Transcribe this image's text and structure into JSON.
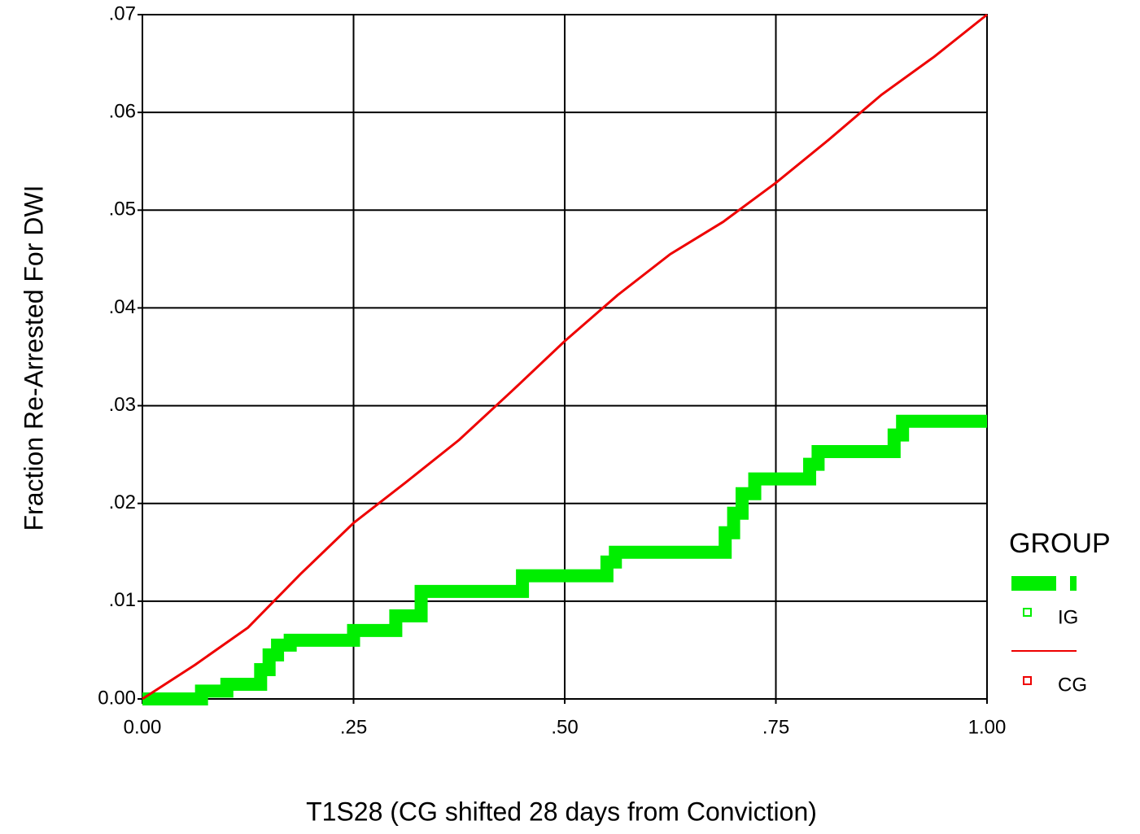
{
  "chart_data": {
    "type": "line",
    "xlabel": "T1S28 (CG shifted 28 days from Conviction)",
    "ylabel": "Fraction Re-Arrested For DWI",
    "legend_title": "GROUP",
    "xlim": [
      0,
      1
    ],
    "xticks": [
      {
        "value": 0,
        "label": "0.00"
      },
      {
        "value": 0.25,
        "label": ".25"
      },
      {
        "value": 0.5,
        "label": ".50"
      },
      {
        "value": 0.75,
        "label": ".75"
      },
      {
        "value": 1,
        "label": "1.00"
      }
    ],
    "ylim": [
      0,
      0.07
    ],
    "yticks": [
      {
        "value": 0,
        "label": "0.00"
      },
      {
        "value": 0.01,
        "label": ".01"
      },
      {
        "value": 0.02,
        "label": ".02"
      },
      {
        "value": 0.03,
        "label": ".03"
      },
      {
        "value": 0.04,
        "label": ".04"
      },
      {
        "value": 0.05,
        "label": ".05"
      },
      {
        "value": 0.06,
        "label": ".06"
      },
      {
        "value": 0.07,
        "label": ".07"
      }
    ],
    "grid": true,
    "series": [
      {
        "name": "IG",
        "color": "#00ee00",
        "x": [
          0,
          0.07,
          0.07,
          0.1,
          0.1,
          0.14,
          0.14,
          0.15,
          0.15,
          0.16,
          0.16,
          0.175,
          0.175,
          0.25,
          0.25,
          0.3,
          0.3,
          0.33,
          0.33,
          0.45,
          0.45,
          0.55,
          0.55,
          0.56,
          0.56,
          0.69,
          0.69,
          0.7,
          0.7,
          0.71,
          0.71,
          0.725,
          0.725,
          0.79,
          0.79,
          0.8,
          0.8,
          0.89,
          0.89,
          0.9,
          0.9,
          1.0
        ],
        "values": [
          0,
          0,
          0.0008,
          0.0008,
          0.0015,
          0.0015,
          0.003,
          0.003,
          0.0045,
          0.0045,
          0.0055,
          0.0055,
          0.006,
          0.006,
          0.007,
          0.007,
          0.0085,
          0.0085,
          0.011,
          0.011,
          0.0126,
          0.0126,
          0.014,
          0.014,
          0.015,
          0.015,
          0.017,
          0.017,
          0.019,
          0.019,
          0.021,
          0.021,
          0.0225,
          0.0225,
          0.024,
          0.024,
          0.0253,
          0.0253,
          0.027,
          0.027,
          0.0284,
          0.0284
        ]
      },
      {
        "name": "CG",
        "color": "#ee0000",
        "x": [
          0,
          0.0625,
          0.125,
          0.1875,
          0.25,
          0.3125,
          0.375,
          0.4375,
          0.5,
          0.5625,
          0.625,
          0.6875,
          0.75,
          0.8125,
          0.875,
          0.9375,
          1
        ],
        "values": [
          0,
          0.0035,
          0.0073,
          0.0128,
          0.018,
          0.0222,
          0.0265,
          0.0315,
          0.0366,
          0.0413,
          0.0455,
          0.0488,
          0.0528,
          0.0572,
          0.0618,
          0.0657,
          0.07
        ]
      }
    ]
  }
}
